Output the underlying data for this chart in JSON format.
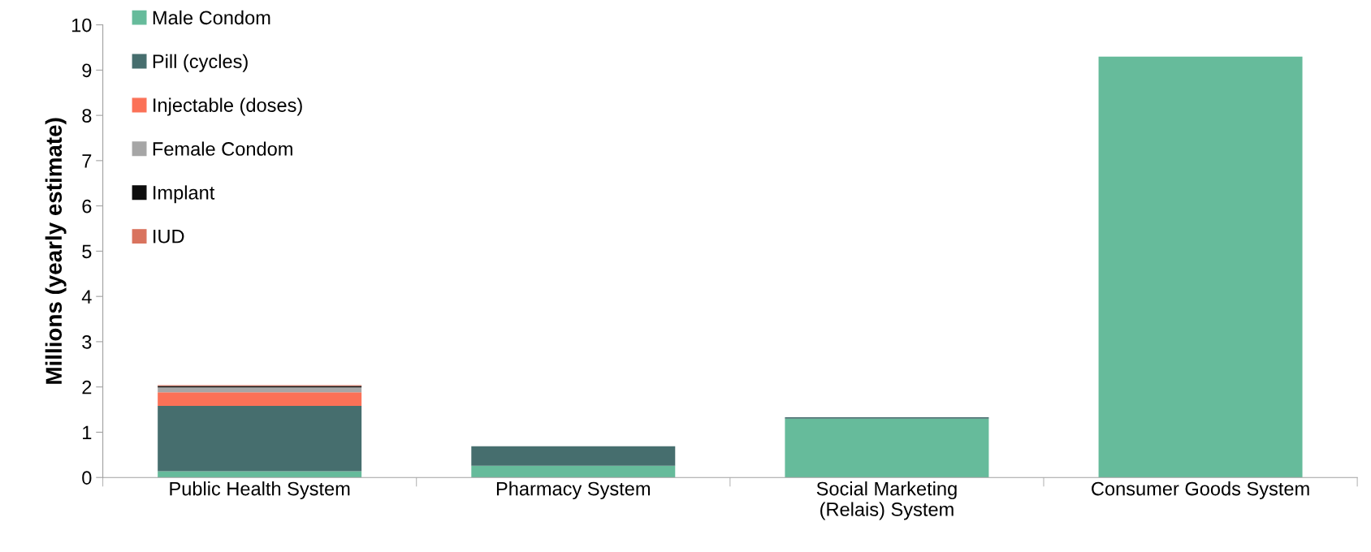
{
  "chart_data": {
    "type": "bar",
    "stacked": true,
    "ylabel": "Millions (yearly estimate)",
    "categories": [
      "Public Health System",
      "Pharmacy System",
      "Social Marketing\n(Relais) System",
      "Consumer Goods System"
    ],
    "series": [
      {
        "name": "Male Condom",
        "color": "#66bb9b",
        "values": [
          0.14,
          0.26,
          1.3,
          9.3
        ]
      },
      {
        "name": "Pill (cycles)",
        "color": "#466e6e",
        "values": [
          1.44,
          0.43,
          0.03,
          0
        ]
      },
      {
        "name": "Injectable (doses)",
        "color": "#fb7157",
        "values": [
          0.3,
          0,
          0,
          0
        ]
      },
      {
        "name": "Female Condom",
        "color": "#a6a6a6",
        "values": [
          0.11,
          0,
          0,
          0
        ]
      },
      {
        "name": "Implant",
        "color": "#0d0d0d",
        "values": [
          0.03,
          0,
          0,
          0
        ]
      },
      {
        "name": "IUD",
        "color": "#d9735e",
        "values": [
          0.02,
          0,
          0,
          0
        ]
      }
    ],
    "ylim": [
      0,
      10
    ],
    "yticks": [
      0,
      1,
      2,
      3,
      4,
      5,
      6,
      7,
      8,
      9,
      10
    ],
    "grid": false,
    "legend": "top left"
  }
}
